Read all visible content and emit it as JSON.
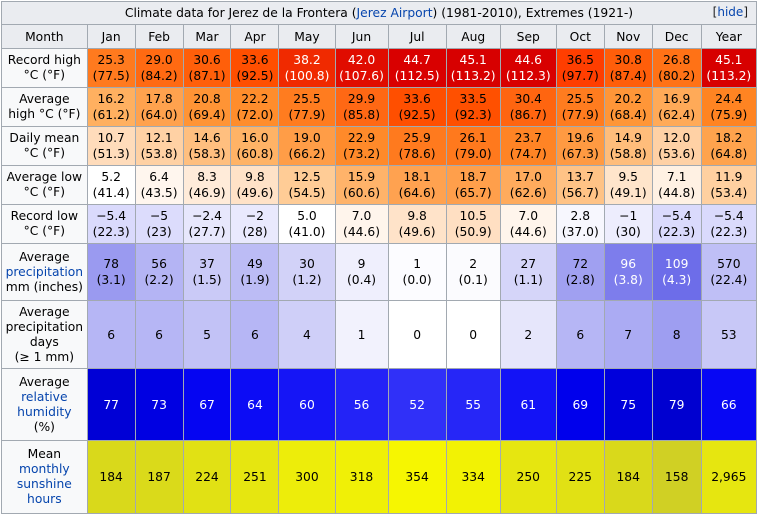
{
  "caption": {
    "prefix": "Climate data for Jerez de la Frontera (",
    "link": "Jerez Airport",
    "suffix": ") (1981-2010), Extremes (1921-)",
    "hide_open": "[",
    "hide_label": "hide",
    "hide_close": "]"
  },
  "header": {
    "month_label": "Month",
    "months": [
      "Jan",
      "Feb",
      "Mar",
      "Apr",
      "May",
      "Jun",
      "Jul",
      "Aug",
      "Sep",
      "Oct",
      "Nov",
      "Dec"
    ],
    "year_label": "Year"
  },
  "rows": [
    {
      "label": "Record high\n°C (°F)",
      "values": [
        "25.3\n(77.5)",
        "29.0\n(84.2)",
        "30.6\n(87.1)",
        "33.6\n(92.5)",
        "38.2\n(100.8)",
        "42.0\n(107.6)",
        "44.7\n(112.5)",
        "45.1\n(113.2)",
        "44.6\n(112.3)",
        "36.5\n(97.7)",
        "30.8\n(87.4)",
        "26.8\n(80.2)",
        "45.1\n(113.2)"
      ],
      "colors": [
        "#ff7a1e",
        "#ff6a12",
        "#ff5f0a",
        "#ff4f00",
        "#f02a00",
        "#e00c00",
        "#d90000",
        "#d70000",
        "#d80000",
        "#ff3e00",
        "#ff5e0a",
        "#ff7216",
        "#d70000"
      ],
      "text_colors": [
        "#000",
        "#000",
        "#000",
        "#000",
        "#fff",
        "#fff",
        "#fff",
        "#fff",
        "#fff",
        "#000",
        "#000",
        "#000",
        "#fff"
      ]
    },
    {
      "label": "Average\nhigh °C (°F)",
      "values": [
        "16.2\n(61.2)",
        "17.8\n(64.0)",
        "20.8\n(69.4)",
        "22.2\n(72.0)",
        "25.5\n(77.9)",
        "29.9\n(85.8)",
        "33.6\n(92.5)",
        "33.5\n(92.3)",
        "30.4\n(86.7)",
        "25.5\n(77.9)",
        "20.2\n(68.4)",
        "16.9\n(62.4)",
        "24.4\n(75.9)"
      ],
      "colors": [
        "#ffb060",
        "#ffa24e",
        "#ff9435",
        "#ff8d2c",
        "#ff7c1f",
        "#ff6814",
        "#ff4f00",
        "#ff5000",
        "#ff6510",
        "#ff7c1f",
        "#ff9638",
        "#ffaa58",
        "#ff8422"
      ],
      "text_colors": [
        "#000",
        "#000",
        "#000",
        "#000",
        "#000",
        "#000",
        "#000",
        "#000",
        "#000",
        "#000",
        "#000",
        "#000",
        "#000"
      ]
    },
    {
      "label": "Daily mean\n°C (°F)",
      "values": [
        "10.7\n(51.3)",
        "12.1\n(53.8)",
        "14.6\n(58.3)",
        "16.0\n(60.8)",
        "19.0\n(66.2)",
        "22.9\n(73.2)",
        "25.9\n(78.6)",
        "26.1\n(79.0)",
        "23.7\n(74.7)",
        "19.6\n(67.3)",
        "14.9\n(58.8)",
        "12.0\n(53.6)",
        "18.2\n(64.8)"
      ],
      "colors": [
        "#ffdcbb",
        "#ffd1a4",
        "#ffbf7f",
        "#ffb366",
        "#ff9d47",
        "#ff8a2a",
        "#ff7a1e",
        "#ff791d",
        "#ff8425",
        "#ff9a42",
        "#ffbd7b",
        "#ffd1a5",
        "#ffa34d"
      ],
      "text_colors": [
        "#000",
        "#000",
        "#000",
        "#000",
        "#000",
        "#000",
        "#000",
        "#000",
        "#000",
        "#000",
        "#000",
        "#000",
        "#000"
      ]
    },
    {
      "label": "Average low\n°C (°F)",
      "values": [
        "5.2\n(41.4)",
        "6.4\n(43.5)",
        "8.3\n(46.9)",
        "9.8\n(49.6)",
        "12.5\n(54.5)",
        "15.9\n(60.6)",
        "18.1\n(64.6)",
        "18.7\n(65.7)",
        "17.0\n(62.6)",
        "13.7\n(56.7)",
        "9.5\n(49.1)",
        "7.1\n(44.8)",
        "11.9\n(53.4)"
      ],
      "colors": [
        "#ffffff",
        "#fff6ee",
        "#ffebd9",
        "#ffe2c7",
        "#ffcc96",
        "#ffb36a",
        "#ffa250",
        "#ff9f4b",
        "#ffab5d",
        "#ffc386",
        "#ffe5cb",
        "#fff1e3",
        "#ffd0a0"
      ],
      "text_colors": [
        "#000",
        "#000",
        "#000",
        "#000",
        "#000",
        "#000",
        "#000",
        "#000",
        "#000",
        "#000",
        "#000",
        "#000",
        "#000"
      ]
    },
    {
      "label": "Record low\n°C (°F)",
      "values": [
        "−5.4\n(22.3)",
        "−5\n(23)",
        "−2.4\n(27.7)",
        "−2\n(28)",
        "5.0\n(41.0)",
        "7.0\n(44.6)",
        "9.8\n(49.6)",
        "10.5\n(50.9)",
        "7.0\n(44.6)",
        "2.8\n(37.0)",
        "−1\n(30)",
        "−5.4\n(22.3)",
        "−5.4\n(22.3)"
      ],
      "colors": [
        "#dadafc",
        "#dcdcfc",
        "#e7e7fc",
        "#e9e9fd",
        "#ffffff",
        "#fff5ec",
        "#ffe3c9",
        "#ffdfc2",
        "#fff5ec",
        "#f7f7fe",
        "#ededfd",
        "#dadafc",
        "#dadafc"
      ],
      "text_colors": [
        "#000",
        "#000",
        "#000",
        "#000",
        "#000",
        "#000",
        "#000",
        "#000",
        "#000",
        "#000",
        "#000",
        "#000",
        "#000"
      ]
    },
    {
      "label_parts": [
        "Average",
        "precipitation",
        "mm (inches)"
      ],
      "values": [
        "78\n(3.1)",
        "56\n(2.2)",
        "37\n(1.5)",
        "49\n(1.9)",
        "30\n(1.2)",
        "9\n(0.4)",
        "1\n(0.0)",
        "2\n(0.1)",
        "27\n(1.1)",
        "72\n(2.8)",
        "96\n(3.8)",
        "109\n(4.3)",
        "570\n(22.4)"
      ],
      "colors": [
        "#9a9af0",
        "#b4b4f4",
        "#cacaf7",
        "#bcbcf5",
        "#d2d2f8",
        "#efeffd",
        "#fcfcff",
        "#fbfbfe",
        "#d5d5f9",
        "#a0a0f1",
        "#7d7dec",
        "#6d6de9",
        "#bfbff6"
      ],
      "text_colors": [
        "#000",
        "#000",
        "#000",
        "#000",
        "#000",
        "#000",
        "#000",
        "#000",
        "#000",
        "#000",
        "#fff",
        "#fff",
        "#000"
      ]
    },
    {
      "label": "Average\nprecipitation\ndays\n(≥ 1 mm)",
      "values": [
        "6",
        "6",
        "5",
        "6",
        "4",
        "1",
        "0",
        "0",
        "2",
        "6",
        "7",
        "8",
        "53"
      ],
      "colors": [
        "#b6b6f5",
        "#b6b6f5",
        "#c2c2f6",
        "#b6b6f5",
        "#cfcff8",
        "#f2f2fd",
        "#ffffff",
        "#ffffff",
        "#e6e6fb",
        "#b6b6f5",
        "#ababf3",
        "#9e9ef1",
        "#c8c8f7"
      ],
      "text_colors": [
        "#000",
        "#000",
        "#000",
        "#000",
        "#000",
        "#000",
        "#000",
        "#000",
        "#000",
        "#000",
        "#000",
        "#000",
        "#000"
      ]
    },
    {
      "label_parts": [
        "Average",
        "relative",
        "humidity",
        "(%)"
      ],
      "values": [
        "77",
        "73",
        "67",
        "64",
        "60",
        "56",
        "52",
        "55",
        "61",
        "69",
        "75",
        "79",
        "66"
      ],
      "colors": [
        "#0000d6",
        "#0000e2",
        "#0505f2",
        "#0c0cf5",
        "#1515f6",
        "#2323f7",
        "#3030f8",
        "#2626f7",
        "#1313f6",
        "#0000ec",
        "#0000dc",
        "#0000d0",
        "#0707f4"
      ],
      "text_colors": [
        "#fff",
        "#fff",
        "#fff",
        "#fff",
        "#fff",
        "#fff",
        "#fff",
        "#fff",
        "#fff",
        "#fff",
        "#fff",
        "#fff",
        "#fff"
      ]
    },
    {
      "label_parts": [
        "Mean",
        "monthly",
        "sunshine",
        "hours"
      ],
      "values": [
        "184",
        "187",
        "224",
        "251",
        "300",
        "318",
        "354",
        "334",
        "250",
        "225",
        "184",
        "158",
        "2,965"
      ],
      "colors": [
        "#d9d91b",
        "#dada1a",
        "#e1e114",
        "#e6e610",
        "#eded0a",
        "#f0f006",
        "#f6f601",
        "#f2f204",
        "#e6e610",
        "#e1e114",
        "#d9d91b",
        "#d0d024",
        "#e6e610"
      ],
      "text_colors": [
        "#000",
        "#000",
        "#000",
        "#000",
        "#000",
        "#000",
        "#000",
        "#000",
        "#000",
        "#000",
        "#000",
        "#000",
        "#000"
      ]
    }
  ]
}
